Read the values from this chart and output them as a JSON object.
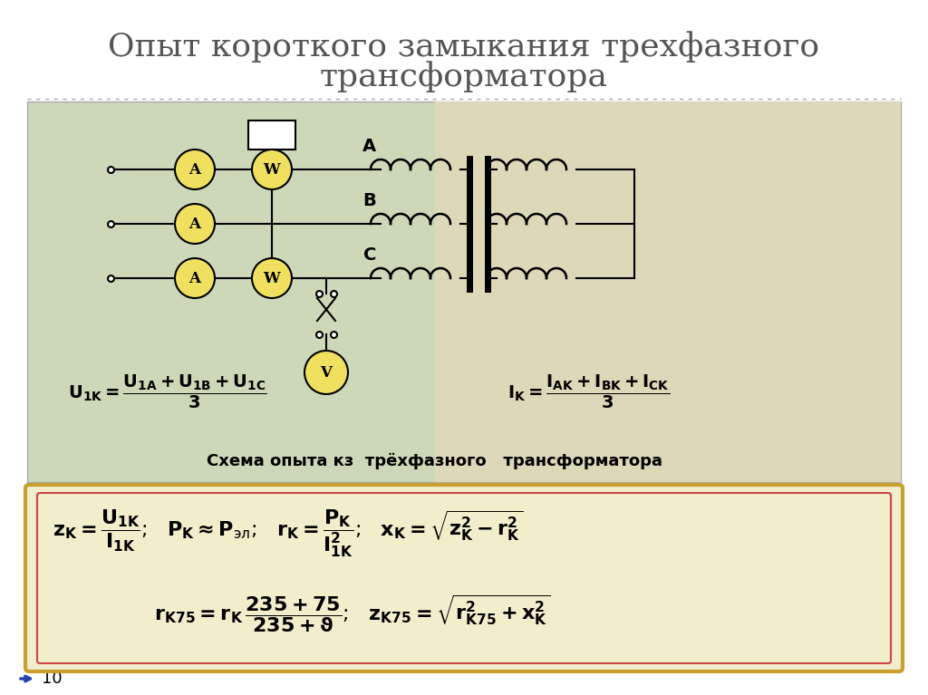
{
  "title_line1": "Опыт короткого замыкания трехфазного",
  "title_line2": "трансформатора",
  "title_fontsize": 26,
  "title_color": "#555555",
  "bg_color": "#ffffff",
  "diagram_bg_left": "#c8d8b8",
  "diagram_bg_right": "#e8e0c8",
  "diagram_border": "#bbbbbb",
  "formula_bg": "#f2eecc",
  "formula_border_outer": "#c8a030",
  "formula_border_inner": "#cc4444",
  "page_number": "10",
  "caption": "Схема опыта кз  трёхфазного   трансформатора"
}
